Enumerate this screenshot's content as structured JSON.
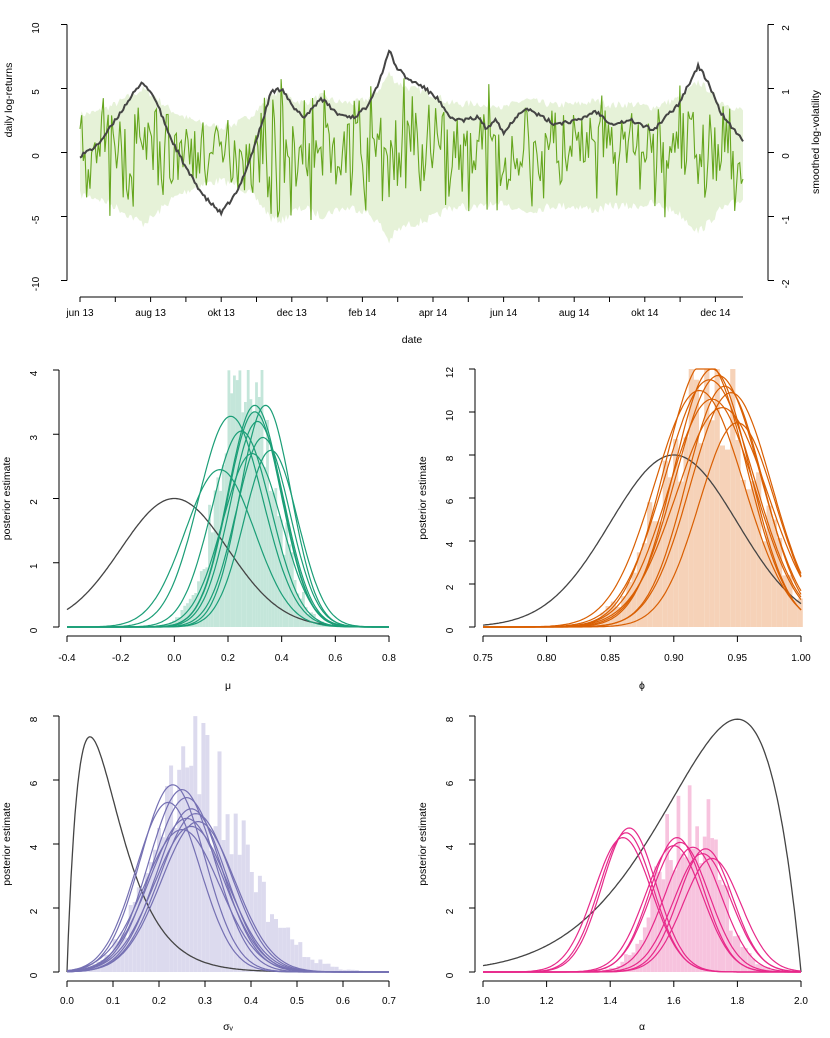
{
  "chart_data": [
    {
      "type": "line",
      "xlabel": "date",
      "ylabel": "daily log-returns",
      "ylabel_right": "smoothed log-volatility",
      "x_ticks": [
        "jun 13",
        "aug 13",
        "okt 13",
        "dec 13",
        "feb 14",
        "apr 14",
        "jun 14",
        "aug 14",
        "okt 14",
        "dec 14"
      ],
      "ylim": [
        -10,
        10
      ],
      "y_ticks": [
        "-10",
        "-5",
        "0",
        "5",
        "10"
      ],
      "ylim_right": [
        -2,
        2
      ],
      "y_ticks_right": [
        "-2",
        "-1",
        "0",
        "1",
        "2"
      ],
      "series": [
        {
          "role": "returns",
          "color": "#66a61e",
          "n": 400,
          "seed": 7
        },
        {
          "role": "band",
          "color": "#e6f2d8"
        },
        {
          "role": "smoothed-volatility",
          "color": "#444444",
          "x": [
            0,
            10,
            20,
            30,
            38,
            45,
            55,
            65,
            75,
            85,
            95,
            103,
            110,
            115,
            122,
            128,
            135,
            145,
            155,
            165,
            172,
            180,
            186,
            190,
            197,
            205,
            215,
            222,
            230,
            240,
            245,
            250,
            255,
            262,
            268,
            275,
            285,
            300,
            310,
            320,
            332,
            345,
            360,
            372,
            378,
            385,
            392,
            400
          ],
          "y": [
            -0.05,
            0.1,
            0.45,
            0.85,
            1.1,
            0.85,
            0.2,
            -0.3,
            -0.7,
            -0.95,
            -0.6,
            -0.05,
            0.5,
            0.95,
            1.0,
            0.7,
            0.55,
            0.85,
            0.6,
            0.55,
            0.7,
            1.1,
            1.6,
            1.35,
            1.15,
            1.05,
            0.85,
            0.55,
            0.5,
            0.55,
            0.35,
            0.55,
            0.3,
            0.55,
            0.7,
            0.6,
            0.45,
            0.5,
            0.65,
            0.45,
            0.5,
            0.35,
            0.75,
            1.35,
            1.1,
            0.65,
            0.4,
            0.15
          ]
        }
      ]
    },
    {
      "type": "histogram",
      "xlabel": "μ",
      "ylabel": "posterior estimate",
      "xlim": [
        -0.4,
        0.8
      ],
      "x_ticks": [
        "-0.4",
        "-0.2",
        "0.0",
        "0.2",
        "0.4",
        "0.6",
        "0.8"
      ],
      "ylim": [
        0,
        4
      ],
      "y_ticks": [
        "0",
        "1",
        "2",
        "3",
        "4"
      ],
      "color": "#1b9e77",
      "hist_color": "#c4e6da",
      "hist": {
        "mean": 0.27,
        "sd": 0.1,
        "peak": 3.9,
        "n": 70,
        "noise": 0.3
      },
      "prior": {
        "kind": "normal",
        "mean": 0.0,
        "sd": 0.2,
        "peak": 2.0
      },
      "posterior_curves": [
        {
          "mean": 0.3,
          "sd": 0.1,
          "peak": 3.45
        },
        {
          "mean": 0.34,
          "sd": 0.095,
          "peak": 3.45
        },
        {
          "mean": 0.3,
          "sd": 0.1,
          "peak": 3.35
        },
        {
          "mean": 0.21,
          "sd": 0.12,
          "peak": 3.28
        },
        {
          "mean": 0.25,
          "sd": 0.11,
          "peak": 3.05
        },
        {
          "mean": 0.33,
          "sd": 0.1,
          "peak": 2.95
        },
        {
          "mean": 0.36,
          "sd": 0.1,
          "peak": 2.75
        },
        {
          "mean": 0.29,
          "sd": 0.11,
          "peak": 2.7
        },
        {
          "mean": 0.17,
          "sd": 0.13,
          "peak": 2.45
        },
        {
          "mean": 0.31,
          "sd": 0.1,
          "peak": 3.2
        }
      ]
    },
    {
      "type": "histogram",
      "xlabel": "ϕ",
      "ylabel": "posterior estimate",
      "xlim": [
        0.75,
        1.0
      ],
      "x_ticks": [
        "0.75",
        "0.80",
        "0.85",
        "0.90",
        "0.95",
        "1.00"
      ],
      "ylim": [
        0,
        12
      ],
      "y_ticks": [
        "0",
        "2",
        "4",
        "6",
        "8",
        "10",
        "12"
      ],
      "color": "#d95f02",
      "hist_color": "#f6d2b8",
      "hist": {
        "mean": 0.928,
        "sd": 0.034,
        "peak": 12.0,
        "n": 60,
        "noise": 0.3
      },
      "prior": {
        "kind": "normal",
        "mean": 0.9,
        "sd": 0.05,
        "peak": 8.0
      },
      "posterior_curves": [
        {
          "mean": 0.925,
          "sd": 0.032,
          "peak": 12.4
        },
        {
          "mean": 0.93,
          "sd": 0.03,
          "peak": 12.0
        },
        {
          "mean": 0.935,
          "sd": 0.033,
          "peak": 11.7
        },
        {
          "mean": 0.94,
          "sd": 0.03,
          "peak": 11.2
        },
        {
          "mean": 0.92,
          "sd": 0.035,
          "peak": 11.0
        },
        {
          "mean": 0.945,
          "sd": 0.032,
          "peak": 10.9
        },
        {
          "mean": 0.93,
          "sd": 0.034,
          "peak": 10.6
        },
        {
          "mean": 0.938,
          "sd": 0.036,
          "peak": 10.2
        },
        {
          "mean": 0.95,
          "sd": 0.03,
          "peak": 9.5
        },
        {
          "mean": 0.928,
          "sd": 0.035,
          "peak": 11.5
        }
      ]
    },
    {
      "type": "histogram",
      "xlabel": "σᵥ",
      "ylabel": "posterior estimate",
      "xlim": [
        0.0,
        0.7
      ],
      "x_ticks": [
        "0.0",
        "0.1",
        "0.2",
        "0.3",
        "0.4",
        "0.5",
        "0.6",
        "0.7"
      ],
      "ylim": [
        0,
        8
      ],
      "y_ticks": [
        "0",
        "2",
        "4",
        "6",
        "8"
      ],
      "color": "#7570b3",
      "hist_color": "#dcdaee",
      "hist": {
        "mean": 0.255,
        "sd": 0.075,
        "peak": 6.4,
        "n": 80,
        "noise": 0.35,
        "skew": 0.6
      },
      "prior": {
        "kind": "gamma",
        "shape": 2.0,
        "rate": 20.0,
        "peak": 7.35
      },
      "posterior_curves": [
        {
          "mean": 0.23,
          "sd": 0.07,
          "peak": 5.85
        },
        {
          "mean": 0.25,
          "sd": 0.072,
          "peak": 5.7
        },
        {
          "mean": 0.26,
          "sd": 0.075,
          "peak": 5.45
        },
        {
          "mean": 0.27,
          "sd": 0.075,
          "peak": 5.1
        },
        {
          "mean": 0.28,
          "sd": 0.078,
          "peak": 4.95
        },
        {
          "mean": 0.26,
          "sd": 0.08,
          "peak": 4.8
        },
        {
          "mean": 0.27,
          "sd": 0.08,
          "peak": 4.55
        },
        {
          "mean": 0.25,
          "sd": 0.082,
          "peak": 4.45
        },
        {
          "mean": 0.22,
          "sd": 0.07,
          "peak": 5.3
        },
        {
          "mean": 0.285,
          "sd": 0.08,
          "peak": 4.7
        }
      ]
    },
    {
      "type": "histogram",
      "xlabel": "α",
      "ylabel": "posterior estimate",
      "xlim": [
        1.0,
        2.0
      ],
      "x_ticks": [
        "1.0",
        "1.2",
        "1.4",
        "1.6",
        "1.8",
        "2.0"
      ],
      "ylim": [
        0,
        8
      ],
      "y_ticks": [
        "0",
        "2",
        "4",
        "6",
        "8"
      ],
      "color": "#e7298a",
      "hist_color": "#f7c3de",
      "hist": {
        "mean": 1.65,
        "sd": 0.09,
        "peak": 5.0,
        "n": 55,
        "noise": 0.35
      },
      "prior": {
        "kind": "beta",
        "a": 10.0,
        "b": 2.0,
        "scale": 2.0,
        "peak": 7.9
      },
      "posterior_curves": [
        {
          "mean": 1.46,
          "sd": 0.085,
          "peak": 4.5
        },
        {
          "mean": 1.45,
          "sd": 0.085,
          "peak": 4.35
        },
        {
          "mean": 1.44,
          "sd": 0.09,
          "peak": 4.2
        },
        {
          "mean": 1.61,
          "sd": 0.085,
          "peak": 4.2
        },
        {
          "mean": 1.62,
          "sd": 0.09,
          "peak": 4.05
        },
        {
          "mean": 1.6,
          "sd": 0.09,
          "peak": 3.95
        },
        {
          "mean": 1.7,
          "sd": 0.085,
          "peak": 3.85
        },
        {
          "mean": 1.69,
          "sd": 0.09,
          "peak": 3.7
        },
        {
          "mean": 1.72,
          "sd": 0.09,
          "peak": 3.55
        },
        {
          "mean": 1.66,
          "sd": 0.09,
          "peak": 3.9
        }
      ]
    }
  ]
}
